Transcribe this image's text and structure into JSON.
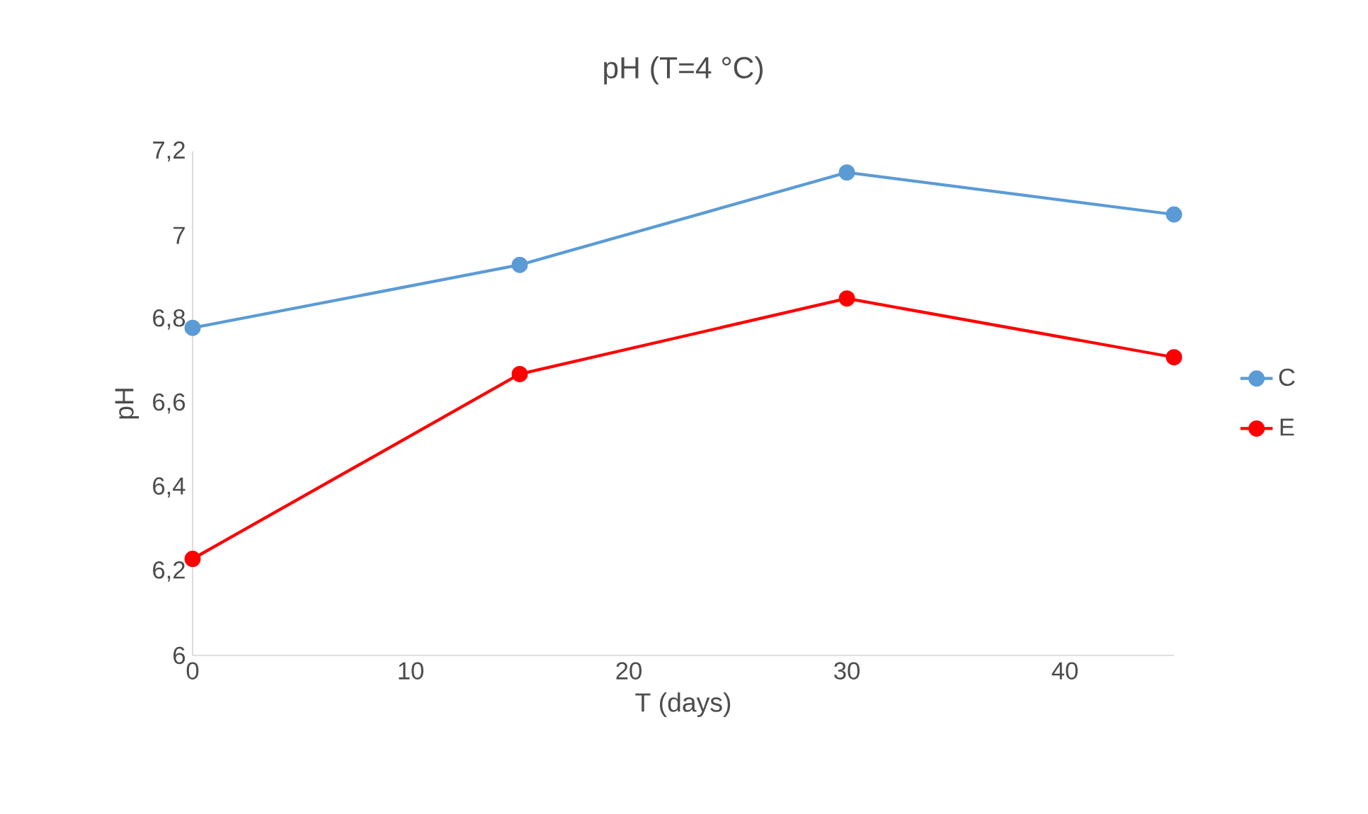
{
  "chart_data": {
    "type": "line",
    "title": "pH (T=4 °C)",
    "xlabel": "T (days)",
    "ylabel": "pH",
    "x": [
      0,
      15,
      30,
      45
    ],
    "series": [
      {
        "name": "C",
        "color": "#5b9bd5",
        "values": [
          6.78,
          6.93,
          7.15,
          7.05
        ]
      },
      {
        "name": "E",
        "color": "#ff0000",
        "values": [
          6.23,
          6.67,
          6.85,
          6.71
        ]
      }
    ],
    "xlim": [
      0,
      45
    ],
    "xticks": [
      0,
      10,
      20,
      30,
      40
    ],
    "ylim": [
      6,
      7.2
    ],
    "yticks": [
      6,
      {
        "value": 6.2,
        "label": "6,2"
      },
      {
        "value": 6.4,
        "label": "6,4"
      },
      {
        "value": 6.6,
        "label": "6,6"
      },
      {
        "value": 6.8,
        "label": "6,8"
      },
      7,
      {
        "value": 7.2,
        "label": "7,2"
      }
    ],
    "grid": false,
    "legend": "right",
    "marker": "circle",
    "line_style": "solid"
  }
}
